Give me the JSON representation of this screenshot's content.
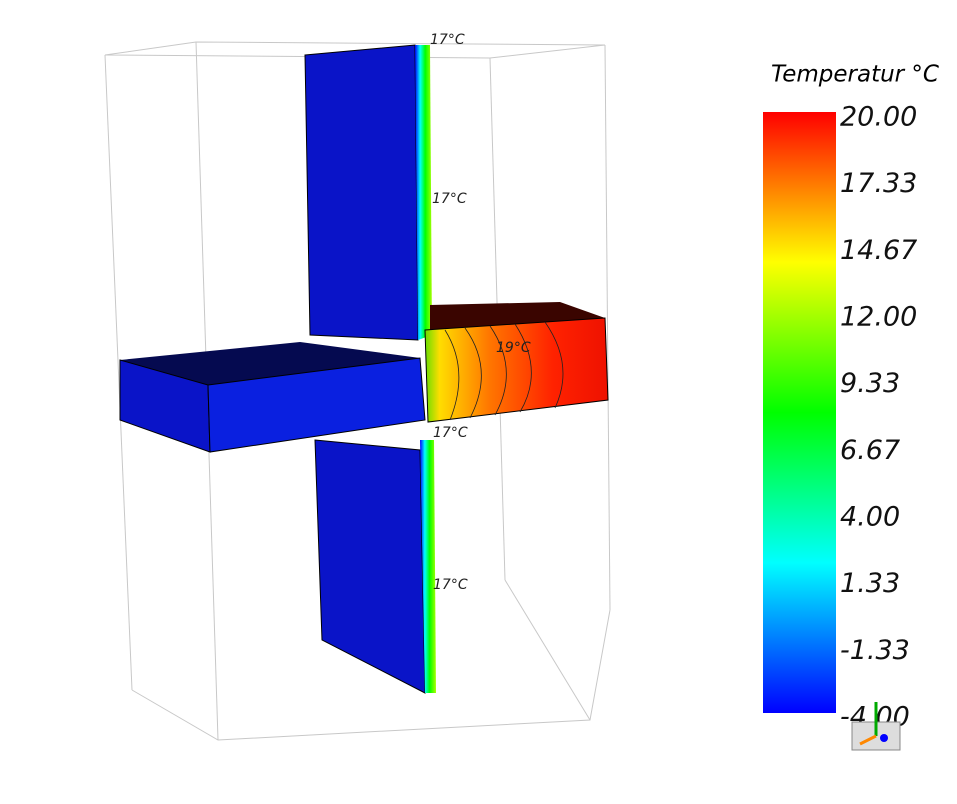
{
  "legend": {
    "title": "Temperatur °C",
    "tick_labels": [
      "20.00",
      "17.33",
      "14.67",
      "12.00",
      "9.33",
      "6.67",
      "4.00",
      "1.33",
      "-1.33",
      "-4.00"
    ]
  },
  "annotations": [
    "17°C",
    "17°C",
    "19°C",
    "17°C",
    "17°C"
  ]
}
